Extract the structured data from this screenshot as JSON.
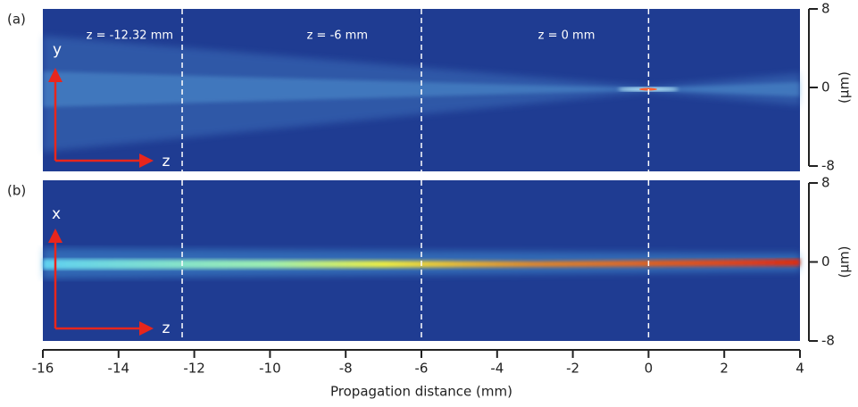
{
  "chart_data": {
    "type": "heatmap",
    "panels": [
      {
        "label": "(a)",
        "transverse_axis": "y",
        "propagation_axis": "z"
      },
      {
        "label": "(b)",
        "transverse_axis": "x",
        "propagation_axis": "z"
      }
    ],
    "xlabel": "Propagation distance (mm)",
    "ylabel": "(μm)",
    "xlim": [
      -16,
      4
    ],
    "xticks": [
      -16,
      -14,
      -12,
      -10,
      -8,
      -6,
      -4,
      -2,
      0,
      2,
      4
    ],
    "ylim": [
      -8,
      8
    ],
    "yticks": [
      -8,
      0,
      8
    ],
    "annotations": [
      {
        "x": -12.32,
        "text": "z = -12.32 mm"
      },
      {
        "x": -6,
        "text": "z = -6 mm"
      },
      {
        "x": 0,
        "text": "z = 0 mm"
      }
    ]
  }
}
